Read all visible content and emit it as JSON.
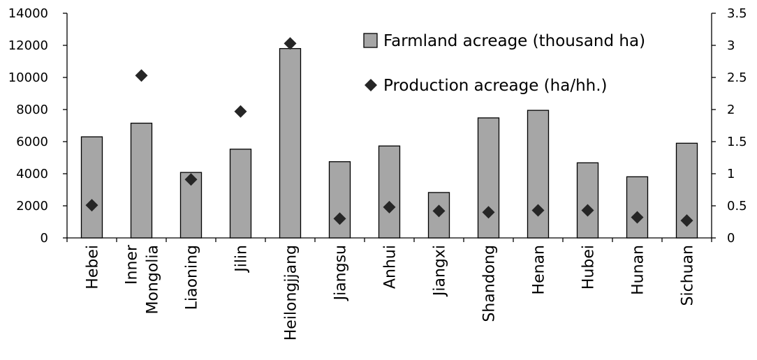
{
  "chart_data": {
    "type": "bar",
    "categories": [
      "Hebei",
      "Inner Mongolia",
      "Liaoning",
      "Jilin",
      "Heilongjjang",
      "Jiangsu",
      "Anhui",
      "Jiangxi",
      "Shandong",
      "Henan",
      "Hubei",
      "Hunan",
      "Sichuan"
    ],
    "category_label_lines": [
      [
        "Hebei"
      ],
      [
        "Inner",
        "Mongolia"
      ],
      [
        "Liaoning"
      ],
      [
        "Jilin"
      ],
      [
        "Heilongjjang"
      ],
      [
        "Jiangsu"
      ],
      [
        "Anhui"
      ],
      [
        "Jiangxi"
      ],
      [
        "Shandong"
      ],
      [
        "Henan"
      ],
      [
        "Hubei"
      ],
      [
        "Hunan"
      ],
      [
        "Sichuan"
      ]
    ],
    "series": [
      {
        "name": "Farmland acreage (thousand ha)",
        "kind": "bar",
        "axis": "left",
        "color": "#a6a6a6",
        "values": [
          6300,
          7150,
          4080,
          5530,
          11800,
          4750,
          5730,
          2830,
          7480,
          7950,
          4680,
          3810,
          5900
        ]
      },
      {
        "name": "Production acreage (ha/hh.)",
        "kind": "scatter",
        "marker": "diamond",
        "axis": "right",
        "color": "#262626",
        "values": [
          0.51,
          2.53,
          0.91,
          1.97,
          3.03,
          0.3,
          0.48,
          0.42,
          0.4,
          0.43,
          0.43,
          0.32,
          0.27
        ]
      }
    ],
    "y_left": {
      "ylim": [
        0,
        14000
      ],
      "ticks": [
        0,
        2000,
        4000,
        6000,
        8000,
        10000,
        12000,
        14000
      ],
      "tick_labels": [
        "0",
        "2000",
        "4000",
        "6000",
        "8000",
        "10000",
        "12000",
        "14000"
      ]
    },
    "y_right": {
      "ylim": [
        0,
        3.5
      ],
      "ticks": [
        0,
        0.5,
        1,
        1.5,
        2,
        2.5,
        3,
        3.5
      ],
      "tick_labels": [
        "0",
        "0.5",
        "1",
        "1.5",
        "2",
        "2.5",
        "3",
        "3.5"
      ]
    },
    "title": "",
    "xlabel": "",
    "ylabel": "",
    "grid": false,
    "legend_position": "top-right"
  }
}
